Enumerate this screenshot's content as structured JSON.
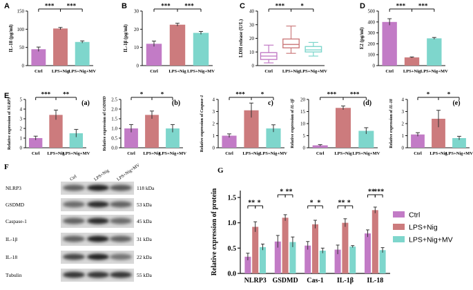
{
  "colors": {
    "ctrl": "#c27bc6",
    "lps": "#cc7b7d",
    "mv": "#7ed6cc",
    "axis": "#111111"
  },
  "chart_data": [
    {
      "id": "A",
      "type": "bar",
      "panel_label": "A",
      "ylabel": "IL-18 (pg/ml)",
      "ylim": [
        0,
        150
      ],
      "yticks": [
        "0",
        "50",
        "100",
        "150"
      ],
      "tick_values": [
        0,
        50,
        100,
        150
      ],
      "categories": [
        "Ctrl",
        "LPS+Nig",
        "LPS+Nig+MV"
      ],
      "values": [
        45,
        102,
        65
      ],
      "errors": [
        6,
        3,
        3
      ],
      "significance": [
        {
          "from": 0,
          "to": 1,
          "label": "***"
        },
        {
          "from": 1,
          "to": 2,
          "label": "***"
        }
      ]
    },
    {
      "id": "B",
      "type": "bar",
      "panel_label": "B",
      "ylabel": "IL-1β (pg/ml)",
      "ylim": [
        0,
        30
      ],
      "yticks": [
        "0",
        "10",
        "20",
        "30"
      ],
      "tick_values": [
        0,
        10,
        20,
        30
      ],
      "categories": [
        "Ctrl",
        "LPS+Nig",
        "LPS+Nig+MV"
      ],
      "values": [
        12,
        22.5,
        18
      ],
      "errors": [
        1.5,
        0.8,
        0.8
      ],
      "significance": [
        {
          "from": 0,
          "to": 1,
          "label": "***"
        },
        {
          "from": 1,
          "to": 2,
          "label": "***"
        }
      ]
    },
    {
      "id": "C",
      "type": "box",
      "panel_label": "C",
      "ylabel": "LDH release (U/L)",
      "ylim": [
        0,
        40
      ],
      "yticks": [
        "0",
        "10",
        "20",
        "30",
        "40"
      ],
      "tick_values": [
        0,
        10,
        20,
        30,
        40
      ],
      "categories": [
        "Ctrl",
        "LPS+Nig",
        "LPS+Nig+MV"
      ],
      "boxes": [
        {
          "min": 2,
          "q1": 4.5,
          "median": 7,
          "q3": 9.5,
          "max": 15
        },
        {
          "min": 9,
          "q1": 13,
          "median": 15.5,
          "q3": 19.5,
          "max": 29
        },
        {
          "min": 7,
          "q1": 10,
          "median": 11.5,
          "q3": 14,
          "max": 17
        }
      ],
      "significance": [
        {
          "from": 0,
          "to": 1,
          "label": "***"
        },
        {
          "from": 1,
          "to": 2,
          "label": "*"
        }
      ]
    },
    {
      "id": "D",
      "type": "bar",
      "panel_label": "D",
      "ylabel": "E2 (pg/ml)",
      "ylim": [
        0,
        500
      ],
      "yticks": [
        "0",
        "100",
        "200",
        "300",
        "400",
        "500"
      ],
      "tick_values": [
        0,
        100,
        200,
        300,
        400,
        500
      ],
      "categories": [
        "Ctrl",
        "LPS+Nig",
        "LPS+Nig+MV"
      ],
      "values": [
        400,
        75,
        250
      ],
      "errors": [
        30,
        4,
        8
      ],
      "significance": [
        {
          "from": 0,
          "to": 1,
          "label": "***"
        },
        {
          "from": 1,
          "to": 2,
          "label": "***"
        }
      ]
    },
    {
      "id": "Ea",
      "type": "bar",
      "panel_label": "E",
      "sub_label": "(a)",
      "ylabel": "Relative expression of NLRP3",
      "ylim": [
        0,
        5
      ],
      "yticks": [
        "0",
        "1",
        "2",
        "3",
        "4",
        "5"
      ],
      "tick_values": [
        0,
        1,
        2,
        3,
        4,
        5
      ],
      "categories": [
        "Ctrl",
        "LPS+Nig",
        "LPS+Nig+MV"
      ],
      "values": [
        1.0,
        3.4,
        1.5
      ],
      "errors": [
        0.2,
        0.5,
        0.4
      ],
      "significance": [
        {
          "from": 0,
          "to": 1,
          "label": "***"
        },
        {
          "from": 1,
          "to": 2,
          "label": "**"
        }
      ]
    },
    {
      "id": "Eb",
      "type": "bar",
      "sub_label": "(b)",
      "ylabel": "Relative expression of GSDMD",
      "ylim": [
        0,
        2.5
      ],
      "yticks": [
        "0.0",
        "0.5",
        "1.0",
        "1.5",
        "2.0",
        "2.5"
      ],
      "tick_values": [
        0,
        0.5,
        1.0,
        1.5,
        2.0,
        2.5
      ],
      "categories": [
        "Ctrl",
        "LPS+Nig",
        "LPS+Nig+MV"
      ],
      "values": [
        1.0,
        1.7,
        1.0
      ],
      "errors": [
        0.2,
        0.2,
        0.2
      ],
      "significance": [
        {
          "from": 0,
          "to": 1,
          "label": "*"
        },
        {
          "from": 1,
          "to": 2,
          "label": "*"
        }
      ]
    },
    {
      "id": "Ec",
      "type": "bar",
      "sub_label": "c)",
      "ylabel": "Relative expression of Caspase-1",
      "ylim": [
        0,
        4
      ],
      "yticks": [
        "0",
        "1",
        "2",
        "3",
        "4"
      ],
      "tick_values": [
        0,
        1,
        2,
        3,
        4
      ],
      "categories": [
        "Ctrl",
        "LPS+Nig",
        "LPS+Nig+MV"
      ],
      "values": [
        1.0,
        3.1,
        1.6
      ],
      "errors": [
        0.15,
        0.6,
        0.3
      ],
      "significance": [
        {
          "from": 0,
          "to": 1,
          "label": "***"
        },
        {
          "from": 1,
          "to": 2,
          "label": "*"
        }
      ]
    },
    {
      "id": "Ed",
      "type": "bar",
      "sub_label": "(d)",
      "ylabel": "Relative expression of IL-1β",
      "ylim": [
        0,
        20
      ],
      "yticks": [
        "0",
        "5",
        "10",
        "15",
        "20"
      ],
      "tick_values": [
        0,
        5,
        10,
        15,
        20
      ],
      "categories": [
        "Ctrl",
        "LPS+Nig",
        "LPS+Nig+MV"
      ],
      "values": [
        1.0,
        16.5,
        7.0
      ],
      "errors": [
        0.3,
        0.8,
        1.3
      ],
      "significance": [
        {
          "from": 0,
          "to": 1,
          "label": "***"
        },
        {
          "from": 1,
          "to": 2,
          "label": "***"
        }
      ]
    },
    {
      "id": "Ee",
      "type": "bar",
      "sub_label": "(e)",
      "ylabel": "Relative expression of IL-18",
      "ylim": [
        0,
        4
      ],
      "yticks": [
        "0",
        "1",
        "2",
        "3",
        "4"
      ],
      "tick_values": [
        0,
        1,
        2,
        3,
        4
      ],
      "categories": [
        "Ctrl",
        "LPS+Nig",
        "LPS+Nig+MV"
      ],
      "values": [
        1.1,
        2.4,
        0.8
      ],
      "errors": [
        0.15,
        0.7,
        0.15
      ],
      "significance": [
        {
          "from": 0,
          "to": 1,
          "label": "*"
        },
        {
          "from": 1,
          "to": 2,
          "label": "*"
        }
      ]
    },
    {
      "id": "G",
      "type": "grouped_bar",
      "panel_label": "G",
      "ylabel": "Relative expression of protein",
      "ylim": [
        0,
        1.5
      ],
      "yticks": [
        "0.0",
        "0.5",
        "1.0",
        "1.5"
      ],
      "tick_values": [
        0,
        0.5,
        1.0,
        1.5
      ],
      "categories": [
        "NLRP3",
        "GSDMD",
        "Cas-1",
        "IL-1β",
        "IL-18"
      ],
      "series": [
        {
          "name": "Ctrl",
          "values": [
            0.33,
            0.63,
            0.55,
            0.47,
            0.79
          ],
          "errors": [
            0.07,
            0.12,
            0.08,
            0.09,
            0.07
          ]
        },
        {
          "name": "LPS+Nig",
          "values": [
            0.92,
            1.1,
            0.97,
            1.0,
            1.25
          ],
          "errors": [
            0.1,
            0.06,
            0.08,
            0.08,
            0.06
          ]
        },
        {
          "name": "LPS+Nig+MV",
          "values": [
            0.52,
            0.62,
            0.45,
            0.53,
            0.46
          ],
          "errors": [
            0.06,
            0.1,
            0.05,
            0.02,
            0.05
          ]
        }
      ],
      "significance": [
        {
          "cat": 0,
          "from": 0,
          "to": 1,
          "label": "**"
        },
        {
          "cat": 0,
          "from": 1,
          "to": 2,
          "label": "*"
        },
        {
          "cat": 1,
          "from": 0,
          "to": 1,
          "label": "*"
        },
        {
          "cat": 1,
          "from": 1,
          "to": 2,
          "label": "**"
        },
        {
          "cat": 2,
          "from": 0,
          "to": 1,
          "label": "*"
        },
        {
          "cat": 2,
          "from": 1,
          "to": 2,
          "label": "*"
        },
        {
          "cat": 3,
          "from": 0,
          "to": 1,
          "label": "**"
        },
        {
          "cat": 3,
          "from": 1,
          "to": 2,
          "label": "*"
        },
        {
          "cat": 4,
          "from": 0,
          "to": 1,
          "label": "**"
        },
        {
          "cat": 4,
          "from": 1,
          "to": 2,
          "label": "***"
        }
      ],
      "legend": [
        "Ctrl",
        "LPS+Nig",
        "LPS+Nig+MV"
      ]
    }
  ],
  "western_blot": {
    "panel_label": "F",
    "lanes": [
      "Ctrl",
      "LPS+Nig",
      "LPS+Nig+MV"
    ],
    "rows": [
      {
        "protein": "NLRP3",
        "size": "118 kDa",
        "intensity": [
          0.55,
          0.9,
          0.6
        ]
      },
      {
        "protein": "GSDMD",
        "size": "53 kDa",
        "intensity": [
          0.5,
          0.85,
          0.55
        ]
      },
      {
        "protein": "Caspase-1",
        "size": "45 kDa",
        "intensity": [
          0.55,
          0.85,
          0.5
        ]
      },
      {
        "protein": "IL-1β",
        "size": "31 kDa",
        "intensity": [
          0.55,
          0.9,
          0.55
        ]
      },
      {
        "protein": "IL-18",
        "size": "22 kDa",
        "intensity": [
          0.7,
          0.9,
          0.45
        ]
      },
      {
        "protein": "Tubulin",
        "size": "55 kDa",
        "intensity": [
          0.8,
          0.8,
          0.8
        ]
      }
    ]
  }
}
